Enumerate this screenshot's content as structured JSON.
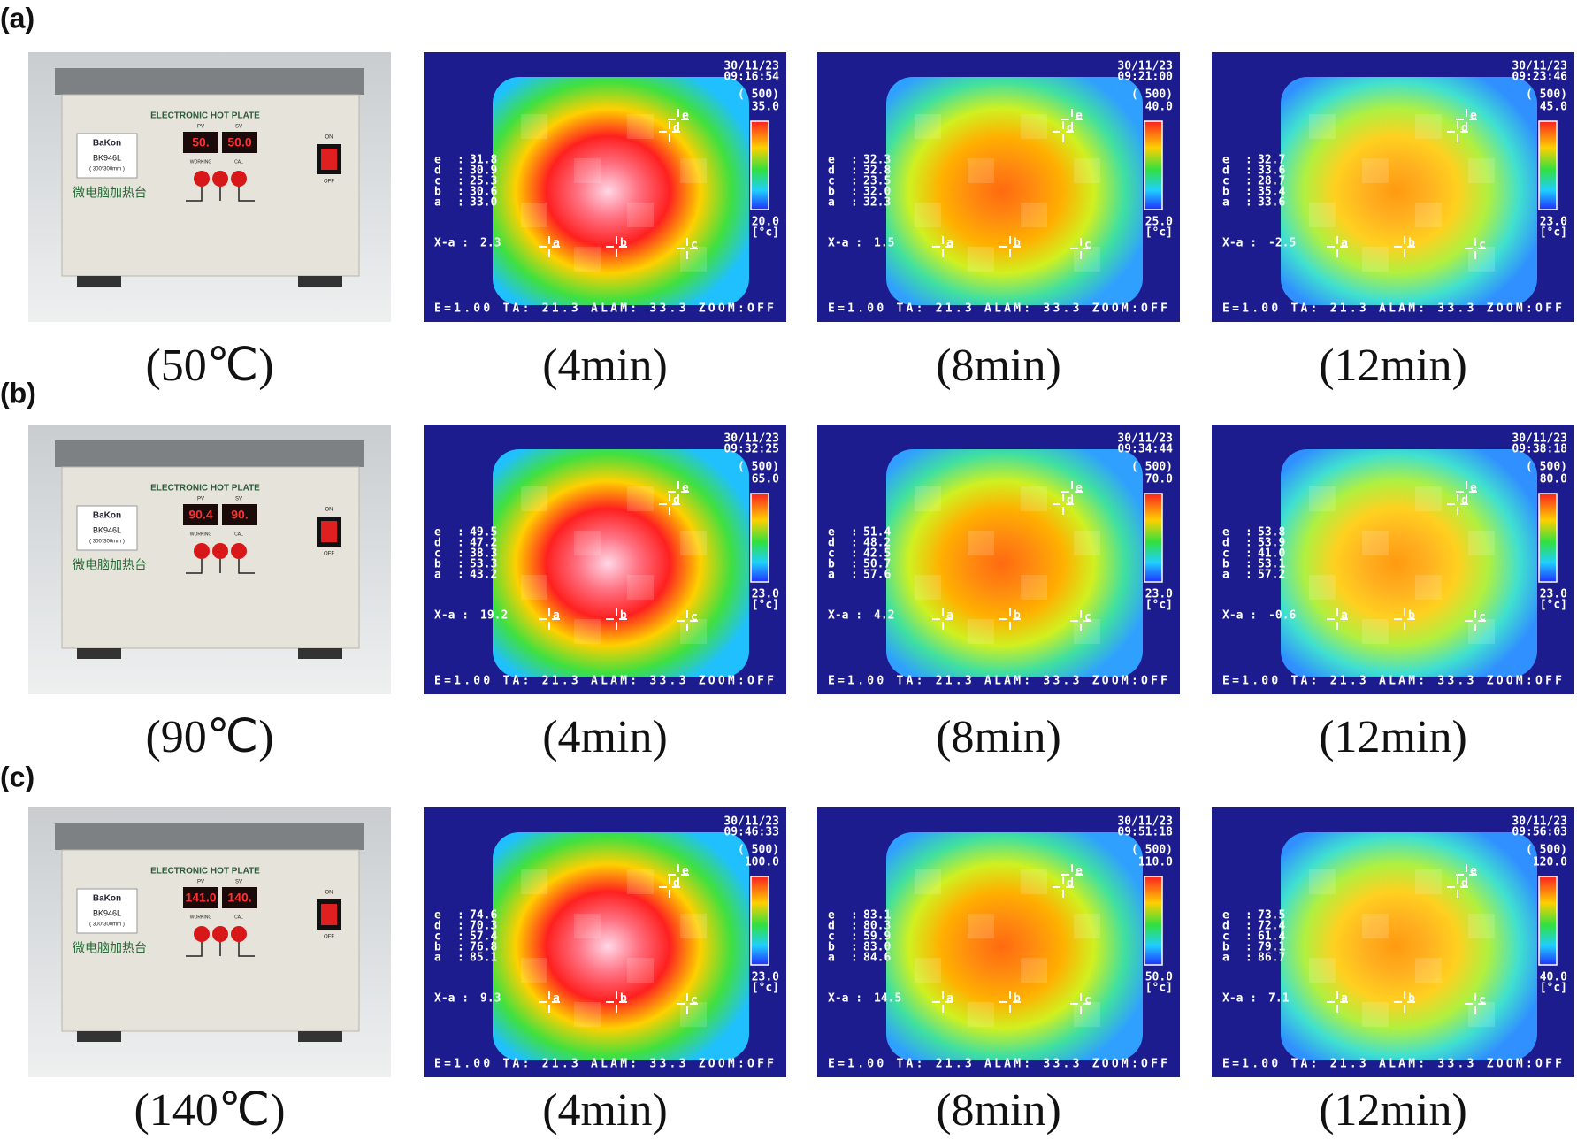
{
  "panels": [
    {
      "label": "(a)",
      "hotplate": {
        "caption": "(50℃)",
        "pv_display": "50.",
        "sv_display": "50.0"
      },
      "thermal": [
        {
          "caption": "(4min)",
          "date": "30/11/23",
          "time": "09:16:54",
          "scale_max": "35.0",
          "scale_min": "20.0",
          "readings": [
            "31.8",
            "30.9",
            "25.3",
            "30.6",
            "33.0"
          ],
          "x_a": "2.3"
        },
        {
          "caption": "(8min)",
          "date": "30/11/23",
          "time": "09:21:00",
          "scale_max": "40.0",
          "scale_min": "25.0",
          "readings": [
            "32.3",
            "32.8",
            "23.5",
            "32.0",
            "32.3"
          ],
          "x_a": "1.5"
        },
        {
          "caption": "(12min)",
          "date": "30/11/23",
          "time": "09:23:46",
          "scale_max": "45.0",
          "scale_min": "23.0",
          "readings": [
            "32.7",
            "33.6",
            "28.7",
            "35.4",
            "33.6"
          ],
          "x_a": "-2.5"
        }
      ]
    },
    {
      "label": "(b)",
      "hotplate": {
        "caption": "(90℃)",
        "pv_display": "90.4",
        "sv_display": "90."
      },
      "thermal": [
        {
          "caption": "(4min)",
          "date": "30/11/23",
          "time": "09:32:25",
          "scale_max": "65.0",
          "scale_min": "23.0",
          "readings": [
            "49.5",
            "47.2",
            "38.3",
            "53.3",
            "43.2"
          ],
          "x_a": "19.2"
        },
        {
          "caption": "(8min)",
          "date": "30/11/23",
          "time": "09:34:44",
          "scale_max": "70.0",
          "scale_min": "23.0",
          "readings": [
            "51.4",
            "48.2",
            "42.5",
            "50.7",
            "57.6"
          ],
          "x_a": "4.2"
        },
        {
          "caption": "(12min)",
          "date": "30/11/23",
          "time": "09:38:18",
          "scale_max": "80.0",
          "scale_min": "23.0",
          "readings": [
            "53.8",
            "53.9",
            "41.0",
            "53.1",
            "57.2"
          ],
          "x_a": "-0.6"
        }
      ]
    },
    {
      "label": "(c)",
      "hotplate": {
        "caption": "(140℃)",
        "pv_display": "141.0",
        "sv_display": "140."
      },
      "thermal": [
        {
          "caption": "(4min)",
          "date": "30/11/23",
          "time": "09:46:33",
          "scale_max": "100.0",
          "scale_min": "23.0",
          "readings": [
            "74.6",
            "70.3",
            "57.4",
            "76.8",
            "85.1"
          ],
          "x_a": "9.3"
        },
        {
          "caption": "(8min)",
          "date": "30/11/23",
          "time": "09:51:18",
          "scale_max": "110.0",
          "scale_min": "50.0",
          "readings": [
            "83.1",
            "80.3",
            "59.9",
            "83.0",
            "84.6"
          ],
          "x_a": "14.5"
        },
        {
          "caption": "(12min)",
          "date": "30/11/23",
          "time": "09:56:03",
          "scale_max": "120.0",
          "scale_min": "40.0",
          "readings": [
            "73.5",
            "72.4",
            "61.4",
            "79.1",
            "86.7"
          ],
          "x_a": "7.1"
        }
      ]
    }
  ],
  "hotplate_labels": {
    "title": "ELECTRONIC HOT PLATE",
    "brand": "BaKon",
    "model": "BK946L",
    "size": "( 300*300mm )",
    "chinese": "微电脑加热台",
    "pv": "PV",
    "sv": "SV",
    "working": "WORKING",
    "cal": "CAL",
    "on": "ON",
    "off": "OFF"
  },
  "thermal_labels": {
    "points": [
      "e",
      "d",
      "c",
      "b",
      "a"
    ],
    "emissivity": "( 500)",
    "unit": "[°c]",
    "x_a_label": "X-a :",
    "footer": "E=1.00  TA: 21.3  ALAM: 33.3  ZOOM:OFF"
  }
}
